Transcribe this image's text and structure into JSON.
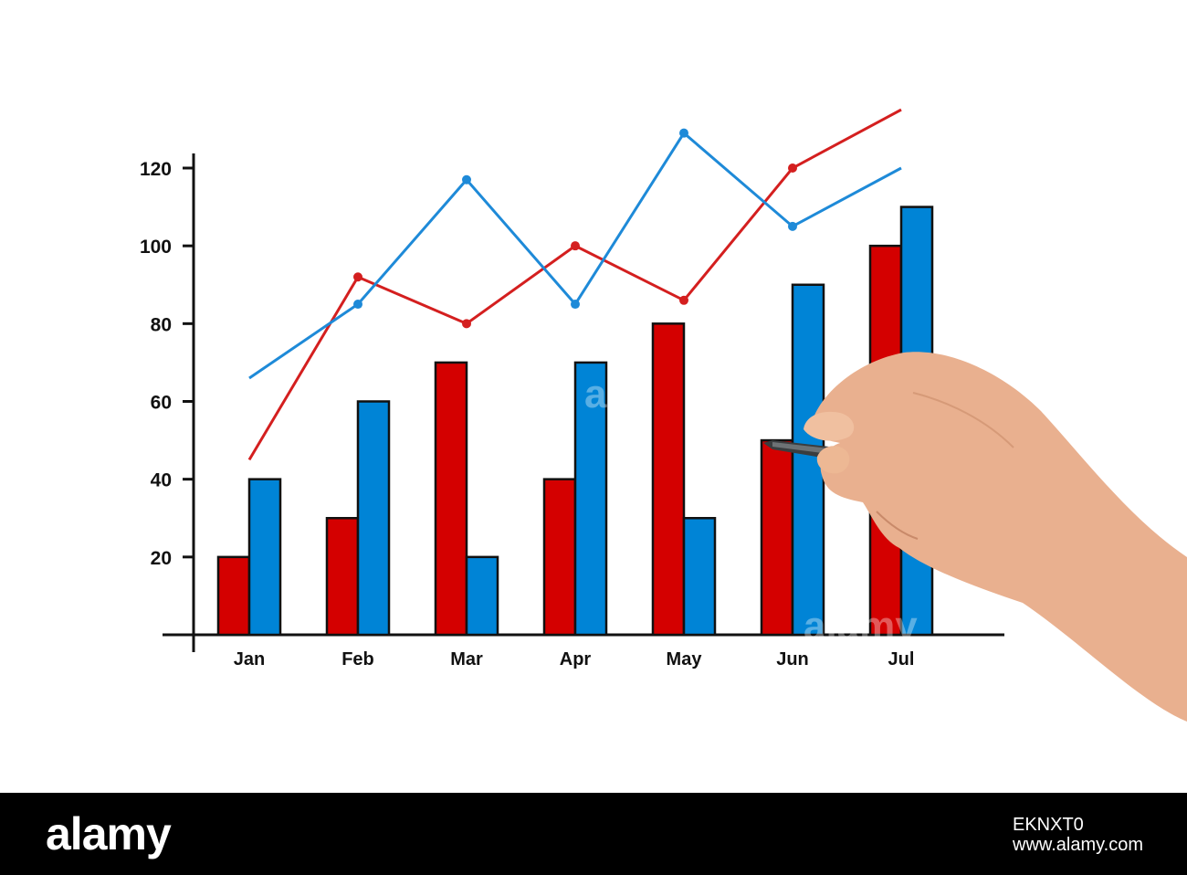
{
  "chart_data": {
    "type": "bar",
    "title": "",
    "xlabel": "",
    "ylabel": "",
    "categories": [
      "Jan",
      "Feb",
      "Mar",
      "Apr",
      "May",
      "Jun",
      "Jul"
    ],
    "ylim": [
      0,
      125
    ],
    "yticks": [
      20,
      40,
      60,
      80,
      100,
      120
    ],
    "series": [
      {
        "kind": "bar",
        "color": "#d40000",
        "values": [
          20,
          30,
          70,
          40,
          80,
          50,
          100
        ]
      },
      {
        "kind": "bar",
        "color": "#0084d6",
        "values": [
          40,
          60,
          20,
          70,
          30,
          90,
          110
        ]
      },
      {
        "kind": "line",
        "color": "#d41f1f",
        "values": [
          45,
          92,
          80,
          100,
          86,
          120,
          135
        ]
      },
      {
        "kind": "line",
        "color": "#1e8ad8",
        "values": [
          66,
          85,
          117,
          85,
          129,
          105,
          120
        ]
      }
    ],
    "grid": false,
    "legend": "none"
  },
  "watermark": "alamy",
  "footer": {
    "logo": "alamy",
    "image_id": "EKNXT0",
    "url": "www.alamy.com"
  }
}
